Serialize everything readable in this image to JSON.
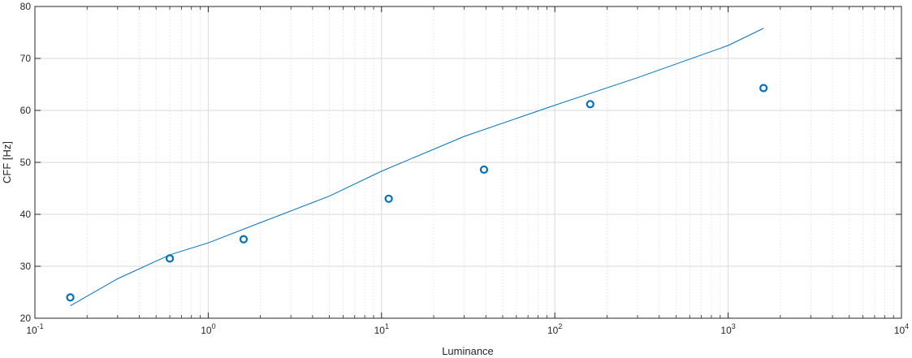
{
  "chart_data": {
    "type": "scatter",
    "xlabel": "Luminance",
    "ylabel": "CFF [Hz]",
    "xscale": "log",
    "xlim": [
      0.1,
      10000
    ],
    "ylim": [
      20,
      80
    ],
    "grid": true,
    "minor_grid": true,
    "x_ticks": [
      {
        "base": "10",
        "exp": "-1",
        "value": 0.1
      },
      {
        "base": "10",
        "exp": "0",
        "value": 1
      },
      {
        "base": "10",
        "exp": "1",
        "value": 10
      },
      {
        "base": "10",
        "exp": "2",
        "value": 100
      },
      {
        "base": "10",
        "exp": "3",
        "value": 1000
      },
      {
        "base": "10",
        "exp": "4",
        "value": 10000
      }
    ],
    "y_ticks": [
      20,
      30,
      40,
      50,
      60,
      70,
      80
    ],
    "series": [
      {
        "kind": "scatter",
        "marker": "circle",
        "color": "#0072BD",
        "points": [
          {
            "x": 0.16,
            "y": 24.0
          },
          {
            "x": 0.6,
            "y": 31.5
          },
          {
            "x": 1.6,
            "y": 35.2
          },
          {
            "x": 11,
            "y": 43.0
          },
          {
            "x": 39,
            "y": 48.6
          },
          {
            "x": 160,
            "y": 61.2
          },
          {
            "x": 1600,
            "y": 64.3
          }
        ]
      },
      {
        "kind": "line",
        "color": "#0072BD",
        "points": [
          {
            "x": 0.16,
            "y": 22.4
          },
          {
            "x": 0.3,
            "y": 27.6
          },
          {
            "x": 0.6,
            "y": 32.2
          },
          {
            "x": 1,
            "y": 34.5
          },
          {
            "x": 2,
            "y": 38.4
          },
          {
            "x": 5,
            "y": 43.5
          },
          {
            "x": 10,
            "y": 48.3
          },
          {
            "x": 30,
            "y": 55.0
          },
          {
            "x": 100,
            "y": 61.0
          },
          {
            "x": 300,
            "y": 66.3
          },
          {
            "x": 1000,
            "y": 72.5
          },
          {
            "x": 1600,
            "y": 75.8
          }
        ]
      }
    ]
  }
}
